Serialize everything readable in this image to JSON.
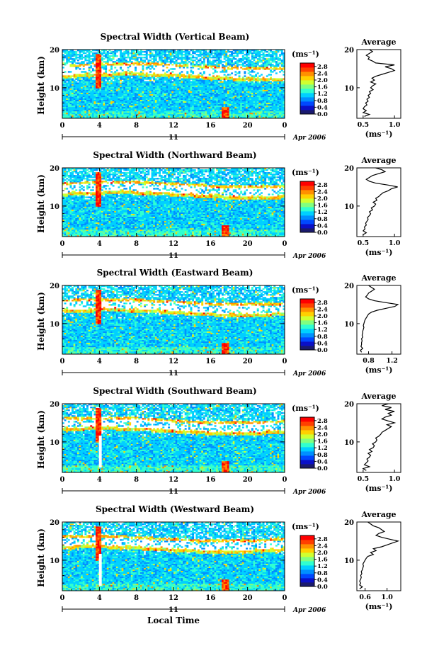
{
  "colors": {
    "scale": [
      "#1a1a6e",
      "#0a10c8",
      "#0048ff",
      "#0090ff",
      "#00d0ff",
      "#30ffd0",
      "#80ff80",
      "#d0ff30",
      "#ffd000",
      "#ff9000",
      "#ff4000",
      "#ff0000"
    ],
    "background": "#ffffff"
  },
  "chart_data": [
    {
      "type": "heatmap",
      "title": "Spectral Width (Vertical Beam)",
      "ylabel": "Height (km)",
      "ylim": [
        2,
        20
      ],
      "x_ticks": [
        "0",
        "4",
        "8",
        "12",
        "16",
        "20",
        "0"
      ],
      "xlim": [
        0,
        24
      ],
      "y_ticks": [
        "20",
        "10"
      ],
      "date_center_label": "11",
      "date_right_label": "Apr 2006",
      "colorbar": {
        "unit": "(ms⁻¹)",
        "ticks": [
          "2.8",
          "2.4",
          "2.0",
          "1.6",
          "1.2",
          "0.8",
          "0.4",
          "0.0"
        ],
        "range": [
          0,
          3.0
        ]
      },
      "average_profile": {
        "title": "Average",
        "xlabel": "(ms⁻¹)",
        "x_ticks": [
          "0.5",
          "1.0"
        ],
        "xlim": [
          0.4,
          1.1
        ],
        "y_ticks": [
          "20",
          "10"
        ],
        "ylim": [
          2,
          20
        ],
        "heights": [
          2.5,
          3,
          3.5,
          4,
          4.5,
          5,
          5.5,
          6,
          6.5,
          7,
          7.5,
          8,
          8.5,
          9,
          9.5,
          10,
          10.5,
          11,
          11.5,
          12,
          12.5,
          13,
          13.5,
          14,
          14.5,
          15,
          15.5,
          16,
          16.5,
          17,
          17.5,
          18,
          18.5,
          19,
          19.5,
          20
        ],
        "values": [
          0.52,
          0.6,
          0.5,
          0.55,
          0.5,
          0.52,
          0.56,
          0.54,
          0.58,
          0.56,
          0.6,
          0.58,
          0.62,
          0.6,
          0.66,
          0.62,
          0.65,
          0.7,
          0.62,
          0.68,
          0.64,
          0.7,
          0.8,
          0.9,
          1.0,
          0.95,
          0.85,
          1.0,
          0.7,
          0.65,
          0.58,
          0.6,
          0.55,
          0.6,
          0.65,
          0.6
        ]
      }
    },
    {
      "type": "heatmap",
      "title": "Spectral Width (Northward Beam)",
      "ylabel": "Height (km)",
      "ylim": [
        2,
        20
      ],
      "x_ticks": [
        "0",
        "4",
        "8",
        "12",
        "16",
        "20",
        "0"
      ],
      "xlim": [
        0,
        24
      ],
      "y_ticks": [
        "20",
        "10"
      ],
      "date_center_label": "11",
      "date_right_label": "Apr 2006",
      "colorbar": {
        "unit": "(ms⁻¹)",
        "ticks": [
          "2.8",
          "2.4",
          "2.0",
          "1.6",
          "1.2",
          "0.8",
          "0.4",
          "0.0"
        ],
        "range": [
          0,
          3.0
        ]
      },
      "average_profile": {
        "title": "Average",
        "xlabel": "(ms⁻¹)",
        "x_ticks": [
          "0.5",
          "1.0"
        ],
        "xlim": [
          0.4,
          1.1
        ],
        "y_ticks": [
          "20",
          "10"
        ],
        "ylim": [
          2,
          20
        ],
        "heights": [
          2.5,
          3,
          3.5,
          4,
          4.5,
          5,
          5.5,
          6,
          6.5,
          7,
          7.5,
          8,
          8.5,
          9,
          9.5,
          10,
          10.5,
          11,
          11.5,
          12,
          12.5,
          13,
          13.5,
          14,
          14.5,
          15,
          15.5,
          16,
          16.5,
          17,
          17.5,
          18,
          18.5,
          19,
          19.5,
          20
        ],
        "values": [
          0.5,
          0.55,
          0.5,
          0.53,
          0.52,
          0.55,
          0.54,
          0.56,
          0.58,
          0.57,
          0.6,
          0.62,
          0.6,
          0.65,
          0.63,
          0.68,
          0.7,
          0.66,
          0.72,
          0.7,
          0.75,
          0.78,
          0.82,
          0.9,
          0.95,
          1.05,
          0.9,
          0.7,
          0.6,
          0.55,
          0.6,
          0.65,
          0.75,
          0.85,
          0.8,
          0.7
        ]
      }
    },
    {
      "type": "heatmap",
      "title": "Spectral Width (Eastward Beam)",
      "ylabel": "Height (km)",
      "ylim": [
        2,
        20
      ],
      "x_ticks": [
        "0",
        "4",
        "8",
        "12",
        "16",
        "20",
        "0"
      ],
      "xlim": [
        0,
        24
      ],
      "y_ticks": [
        "20",
        "10"
      ],
      "date_center_label": "11",
      "date_right_label": "Apr 2006",
      "colorbar": {
        "unit": "(ms⁻¹)",
        "ticks": [
          "2.8",
          "2.4",
          "2.0",
          "1.6",
          "1.2",
          "0.8",
          "0.4",
          "0.0"
        ],
        "range": [
          0,
          3.0
        ]
      },
      "average_profile": {
        "title": "Average",
        "xlabel": "(ms⁻¹)",
        "x_ticks": [
          "0.8",
          "1.2"
        ],
        "xlim": [
          0.6,
          1.35
        ],
        "y_ticks": [
          "20",
          "10"
        ],
        "ylim": [
          2,
          20
        ],
        "heights": [
          2.5,
          3,
          3.5,
          4,
          4.5,
          5,
          5.5,
          6,
          6.5,
          7,
          7.5,
          8,
          8.5,
          9,
          9.5,
          10,
          10.5,
          11,
          11.5,
          12,
          12.5,
          13,
          13.5,
          14,
          14.5,
          15,
          15.5,
          16,
          16.5,
          17,
          17.5,
          18,
          18.5,
          19,
          19.5,
          20
        ],
        "values": [
          0.68,
          0.66,
          0.7,
          0.67,
          0.68,
          0.68,
          0.69,
          0.68,
          0.7,
          0.69,
          0.7,
          0.7,
          0.71,
          0.72,
          0.71,
          0.72,
          0.73,
          0.74,
          0.76,
          0.78,
          0.8,
          0.85,
          0.95,
          1.1,
          1.25,
          1.3,
          1.1,
          0.9,
          0.8,
          0.75,
          0.78,
          0.8,
          0.85,
          0.9,
          0.85,
          0.8
        ]
      }
    },
    {
      "type": "heatmap",
      "title": "Spectral Width (Southward Beam)",
      "ylabel": "Height (km)",
      "ylim": [
        2,
        20
      ],
      "x_ticks": [
        "0",
        "4",
        "8",
        "12",
        "16",
        "20",
        "0"
      ],
      "xlim": [
        0,
        24
      ],
      "y_ticks": [
        "20",
        "10"
      ],
      "date_center_label": "11",
      "date_right_label": "Apr 2006",
      "colorbar": {
        "unit": "(ms⁻¹)",
        "ticks": [
          "2.8",
          "2.4",
          "2.0",
          "1.6",
          "1.2",
          "0.8",
          "0.4",
          "0.0"
        ],
        "range": [
          0,
          3.0
        ]
      },
      "average_profile": {
        "title": "Average",
        "xlabel": "(ms⁻¹)",
        "x_ticks": [
          "0.5",
          "1.0"
        ],
        "xlim": [
          0.4,
          1.1
        ],
        "y_ticks": [
          "20",
          "10"
        ],
        "ylim": [
          2,
          20
        ],
        "heights": [
          2.5,
          3,
          3.5,
          4,
          4.5,
          5,
          5.5,
          6,
          6.5,
          7,
          7.5,
          8,
          8.5,
          9,
          9.5,
          10,
          10.5,
          11,
          11.5,
          12,
          12.5,
          13,
          13.5,
          14,
          14.5,
          15,
          15.5,
          16,
          16.5,
          17,
          17.5,
          18,
          18.5,
          19,
          19.5,
          20
        ],
        "values": [
          0.55,
          0.5,
          0.6,
          0.52,
          0.55,
          0.58,
          0.56,
          0.6,
          0.62,
          0.58,
          0.64,
          0.6,
          0.66,
          0.68,
          0.65,
          0.7,
          0.72,
          0.7,
          0.75,
          0.78,
          0.8,
          0.85,
          0.9,
          0.95,
          0.88,
          1.0,
          0.9,
          0.8,
          0.85,
          0.95,
          0.9,
          1.0,
          0.85,
          0.95,
          0.8,
          0.9
        ]
      }
    },
    {
      "type": "heatmap",
      "title": "Spectral Width (Westward Beam)",
      "ylabel": "Height (km)",
      "ylim": [
        2,
        20
      ],
      "x_ticks": [
        "0",
        "4",
        "8",
        "12",
        "16",
        "20",
        "0"
      ],
      "xlim": [
        0,
        24
      ],
      "y_ticks": [
        "20",
        "10"
      ],
      "date_center_label": "11",
      "date_right_label": "Apr 2006",
      "xlabel": "Local Time",
      "colorbar": {
        "unit": "(ms⁻¹)",
        "ticks": [
          "2.8",
          "2.4",
          "2.0",
          "1.6",
          "1.2",
          "0.8",
          "0.4",
          "0.0"
        ],
        "range": [
          0,
          3.0
        ]
      },
      "average_profile": {
        "title": "Average",
        "xlabel": "(ms⁻¹)",
        "x_ticks": [
          "0.6",
          "1.0"
        ],
        "xlim": [
          0.45,
          1.25
        ],
        "y_ticks": [
          "20",
          "10"
        ],
        "ylim": [
          2,
          20
        ],
        "heights": [
          2.5,
          3,
          3.5,
          4,
          4.5,
          5,
          5.5,
          6,
          6.5,
          7,
          7.5,
          8,
          8.5,
          9,
          9.5,
          10,
          10.5,
          11,
          11.5,
          12,
          12.5,
          13,
          13.5,
          14,
          14.5,
          15,
          15.5,
          16,
          16.5,
          17,
          17.5,
          18,
          18.5,
          19,
          19.5,
          20
        ],
        "values": [
          0.5,
          0.55,
          0.5,
          0.52,
          0.5,
          0.52,
          0.53,
          0.52,
          0.54,
          0.53,
          0.55,
          0.56,
          0.57,
          0.56,
          0.58,
          0.6,
          0.62,
          0.65,
          0.75,
          0.7,
          0.8,
          0.75,
          0.9,
          1.0,
          1.1,
          1.2,
          1.05,
          0.9,
          0.8,
          0.85,
          0.95,
          0.9,
          0.85,
          0.75,
          0.7,
          0.65
        ]
      }
    }
  ]
}
